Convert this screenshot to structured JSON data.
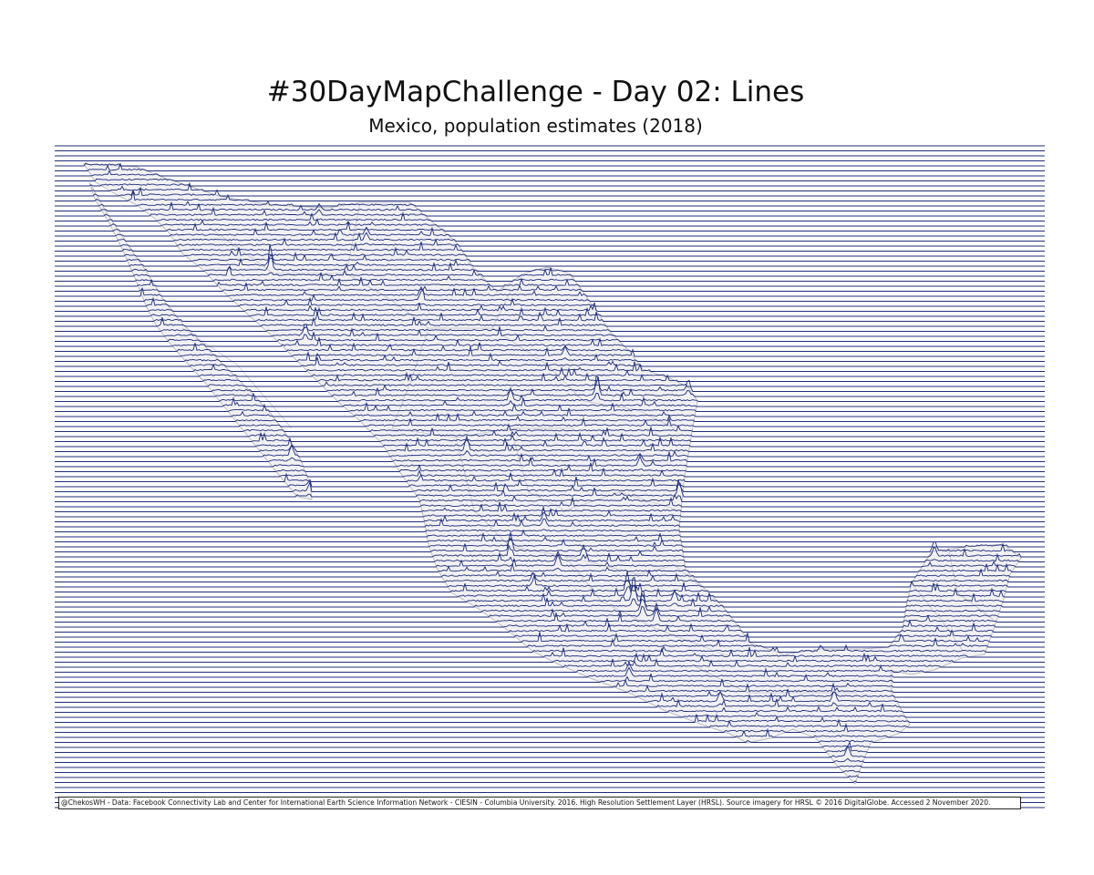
{
  "header": {
    "title": "#30DayMapChallenge - Day 02: Lines",
    "subtitle": "Mexico, population estimates (2018)"
  },
  "footer": {
    "credit": "@ChekosWH - Data: Facebook Connectivity Lab and Center for International Earth Science Information Network - CIESIN - Columbia University. 2016. High Resolution Settlement Layer (HRSL). Source imagery for HRSL © 2016 DigitalGlobe. Accessed 2 November 2020."
  },
  "colors": {
    "line": "#1f2d7a",
    "land_fill": "#f1f1f4",
    "border": "#b8b8c4",
    "background": "#ffffff"
  },
  "map": {
    "country": "Mexico",
    "style": "ridgeline population lines"
  }
}
